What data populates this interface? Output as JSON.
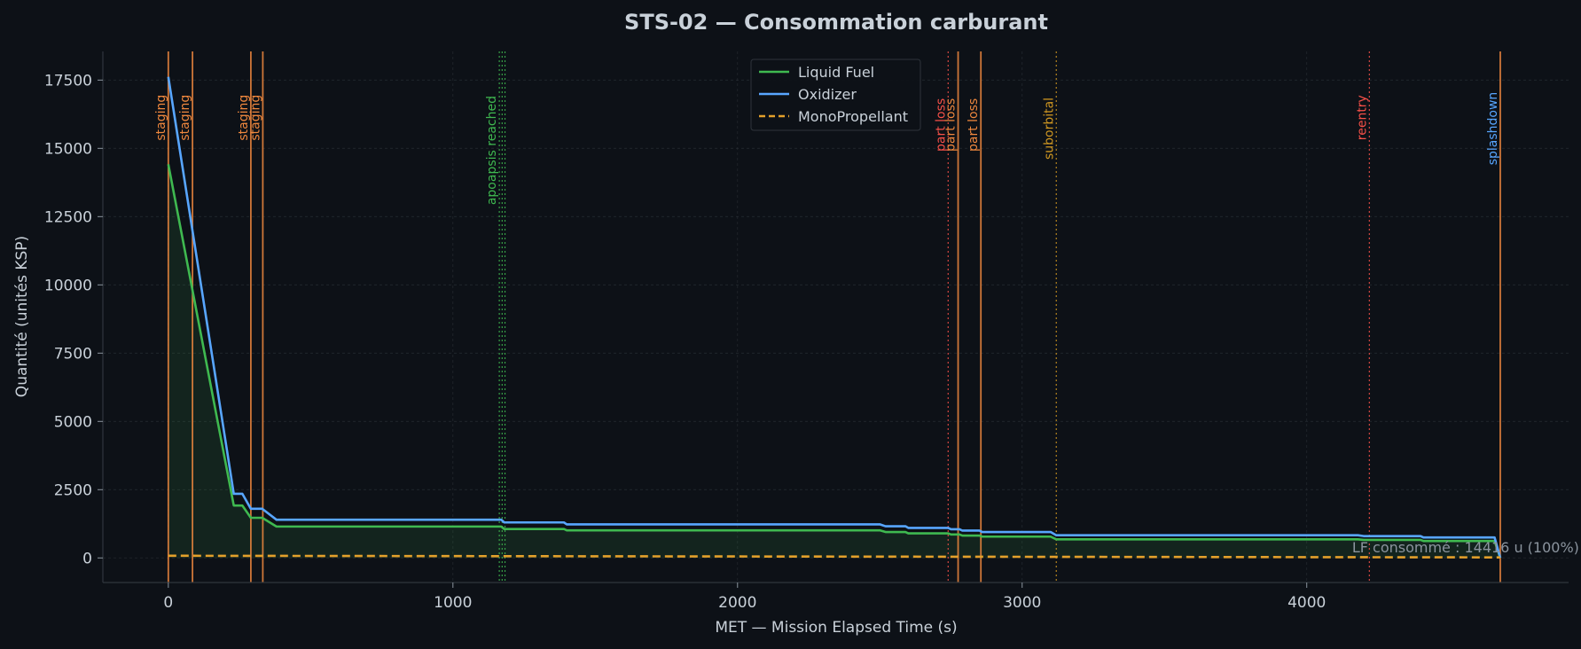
{
  "chart_data": {
    "type": "line",
    "title": "STS-02 — Consommation carburant",
    "xlabel": "MET — Mission Elapsed Time (s)",
    "ylabel": "Quantité (unités KSP)",
    "xlim": [
      -230,
      4920
    ],
    "ylim": [
      -900,
      18550
    ],
    "xticks": [
      0,
      1000,
      2000,
      3000,
      4000
    ],
    "yticks": [
      0,
      2500,
      5000,
      7500,
      10000,
      12500,
      15000,
      17500
    ],
    "grid": true,
    "legend_position": "top-center",
    "series": [
      {
        "name": "Liquid Fuel",
        "color": "#3fb950",
        "style": "solid",
        "fill": true,
        "x": [
          0,
          230,
          260,
          290,
          330,
          380,
          1170,
          1180,
          1390,
          1400,
          2500,
          2520,
          2590,
          2600,
          2740,
          2750,
          2780,
          2790,
          2850,
          2860,
          3100,
          3120,
          4180,
          4200,
          4400,
          4410,
          4660,
          4680
        ],
        "y": [
          14416,
          1920,
          1920,
          1470,
          1470,
          1150,
          1150,
          1060,
          1060,
          1010,
          1010,
          950,
          950,
          900,
          900,
          860,
          860,
          820,
          820,
          780,
          780,
          680,
          680,
          660,
          660,
          620,
          620,
          0
        ]
      },
      {
        "name": "Oxidizer",
        "color": "#58a6ff",
        "style": "solid",
        "fill": false,
        "x": [
          0,
          230,
          260,
          290,
          330,
          380,
          1170,
          1180,
          1390,
          1400,
          2500,
          2520,
          2590,
          2600,
          2740,
          2750,
          2780,
          2790,
          2850,
          2860,
          3100,
          3120,
          4180,
          4200,
          4400,
          4410,
          4660,
          4680
        ],
        "y": [
          17620,
          2350,
          2350,
          1800,
          1800,
          1400,
          1400,
          1300,
          1300,
          1230,
          1230,
          1160,
          1160,
          1100,
          1100,
          1050,
          1050,
          1000,
          1000,
          950,
          950,
          830,
          830,
          800,
          800,
          750,
          750,
          0
        ]
      },
      {
        "name": "MonoPropellant",
        "color": "#e3a02b",
        "style": "dashed",
        "fill": false,
        "x": [
          0,
          4680
        ],
        "y": [
          80,
          20
        ]
      }
    ],
    "events": [
      {
        "x": 0,
        "label": "staging",
        "color": "#f0883e",
        "style": "solid",
        "offset": -1
      },
      {
        "x": 85,
        "label": "staging",
        "color": "#f0883e",
        "style": "solid",
        "offset": -1
      },
      {
        "x": 290,
        "label": "staging",
        "color": "#f0883e",
        "style": "solid",
        "offset": -1
      },
      {
        "x": 332,
        "label": "staging",
        "color": "#f0883e",
        "style": "solid",
        "offset": -1
      },
      {
        "x": 1163,
        "label": "apoapsis reached",
        "color": "#3fb950",
        "style": "dotted",
        "offset": -1
      },
      {
        "x": 1173,
        "label": "",
        "color": "#3fb950",
        "style": "dotted",
        "offset": 0
      },
      {
        "x": 1183,
        "label": "",
        "color": "#3fb950",
        "style": "dotted",
        "offset": 0
      },
      {
        "x": 2740,
        "label": "part loss",
        "color": "#f85149",
        "style": "dotted",
        "offset": -1
      },
      {
        "x": 2775,
        "label": "part loss",
        "color": "#f0883e",
        "style": "solid",
        "offset": -1
      },
      {
        "x": 2855,
        "label": "part loss",
        "color": "#f0883e",
        "style": "solid",
        "offset": -1
      },
      {
        "x": 3120,
        "label": "suborbital",
        "color": "#d29922",
        "style": "dotted",
        "offset": -1
      },
      {
        "x": 4220,
        "label": "reentry",
        "color": "#f85149",
        "style": "dotted",
        "offset": -1
      },
      {
        "x": 4680,
        "label": "splashdown",
        "color": "#f0883e",
        "style": "solid",
        "label_color": "#58a6ff",
        "offset": -1
      }
    ],
    "annotation": {
      "text": "LF consommé : 14416 u (100%)",
      "x": 4630,
      "y": 400
    }
  }
}
